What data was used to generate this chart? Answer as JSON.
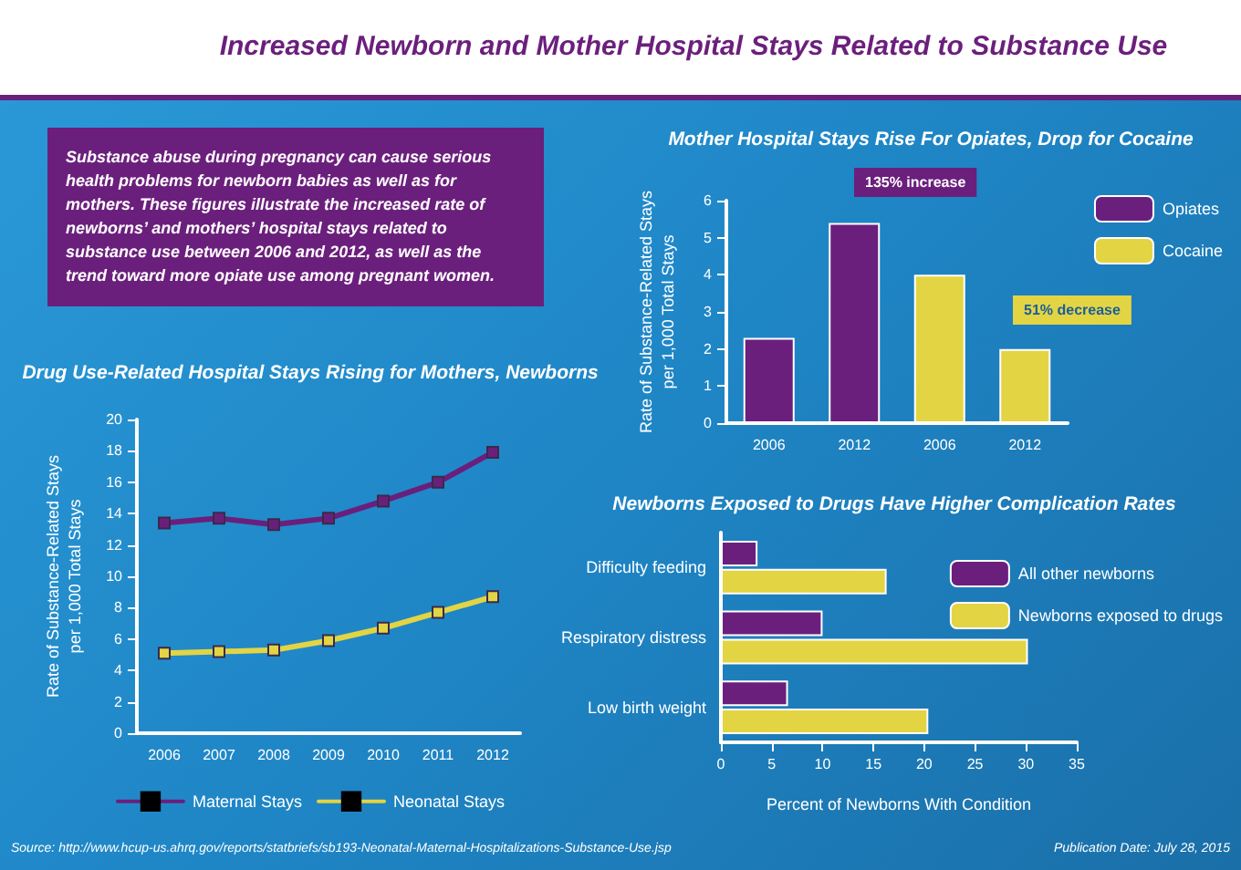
{
  "chart_data": [
    {
      "type": "other",
      "title": "Increased Newborn and Mother Hospital Stays Related to Substance Use",
      "annotations": [
        "Substance abuse during pregnancy can cause serious health problems for newborn babies as well as for mothers. These figures illustrate the increased rate of newborns’ and mothers’ hospital stays related to substance use between 2006 and 2012, as well as the trend toward more opiate use among pregnant women.",
        "Source: http://www.hcup-us.ahrq.gov/reports/statbriefs/sb193-Neonatal-Maternal-Hospitalizations-Substance-Use.jsp",
        "Publication Date: July 28, 2015"
      ]
    },
    {
      "type": "bar",
      "title": "Mother Hospital Stays Rise For Opiates, Drop for Cocaine",
      "ylabel": "Rate of Substance-Related Stays\nper 1,000 Total Stays",
      "categories": [
        "2006",
        "2012",
        "2006",
        "2012"
      ],
      "series": [
        {
          "name": "Opiates",
          "color": "#6b1f7c",
          "values": [
            2.3,
            5.4,
            null,
            null
          ]
        },
        {
          "name": "Cocaine",
          "color": "#e3d444",
          "values": [
            null,
            null,
            4.0,
            2.0
          ]
        }
      ],
      "ylim": [
        0,
        6
      ],
      "yticks": [
        0,
        1,
        2,
        3,
        4,
        5,
        6
      ],
      "grid": false,
      "legend": "top right",
      "annotations": [
        "135% increase",
        "51% decrease"
      ]
    },
    {
      "type": "line",
      "title": "Drug Use-Related Hospital Stays Rising for Mothers, Newborns",
      "ylabel": "Rate of Substance-Related Stays\nper 1,000 Total Stays",
      "categories": [
        "2006",
        "2007",
        "2008",
        "2009",
        "2010",
        "2011",
        "2012"
      ],
      "series": [
        {
          "name": "Maternal Stays",
          "color": "#6b1f7c",
          "values": [
            13.4,
            13.7,
            13.3,
            13.7,
            14.8,
            16.0,
            17.9
          ]
        },
        {
          "name": "Neonatal Stays",
          "color": "#e3d444",
          "values": [
            5.1,
            5.2,
            5.3,
            5.9,
            6.7,
            7.7,
            8.7
          ]
        }
      ],
      "ylim": [
        0,
        20
      ],
      "yticks": [
        0,
        2,
        4,
        6,
        8,
        10,
        12,
        14,
        16,
        18,
        20
      ],
      "grid": false,
      "legend": "bottom",
      "marker": "square",
      "line_style": "solid"
    },
    {
      "type": "bar",
      "orientation": "horizontal",
      "title": "Newborns Exposed to Drugs Have Higher Complication Rates",
      "xlabel": "Percent of Newborns With Condition",
      "categories": [
        "Difficulty feeding",
        "Respiratory distress",
        "Low birth weight"
      ],
      "series": [
        {
          "name": "All other newborns",
          "color": "#6b1f7c",
          "values": [
            3.6,
            10.0,
            6.6
          ]
        },
        {
          "name": "Newborns exposed to drugs",
          "color": "#e3d444",
          "values": [
            16.3,
            30.2,
            20.4
          ]
        }
      ],
      "xlim": [
        0,
        35
      ],
      "xticks": [
        0,
        5,
        10,
        15,
        20,
        25,
        30,
        35
      ],
      "grid": false,
      "legend": "top right"
    }
  ]
}
